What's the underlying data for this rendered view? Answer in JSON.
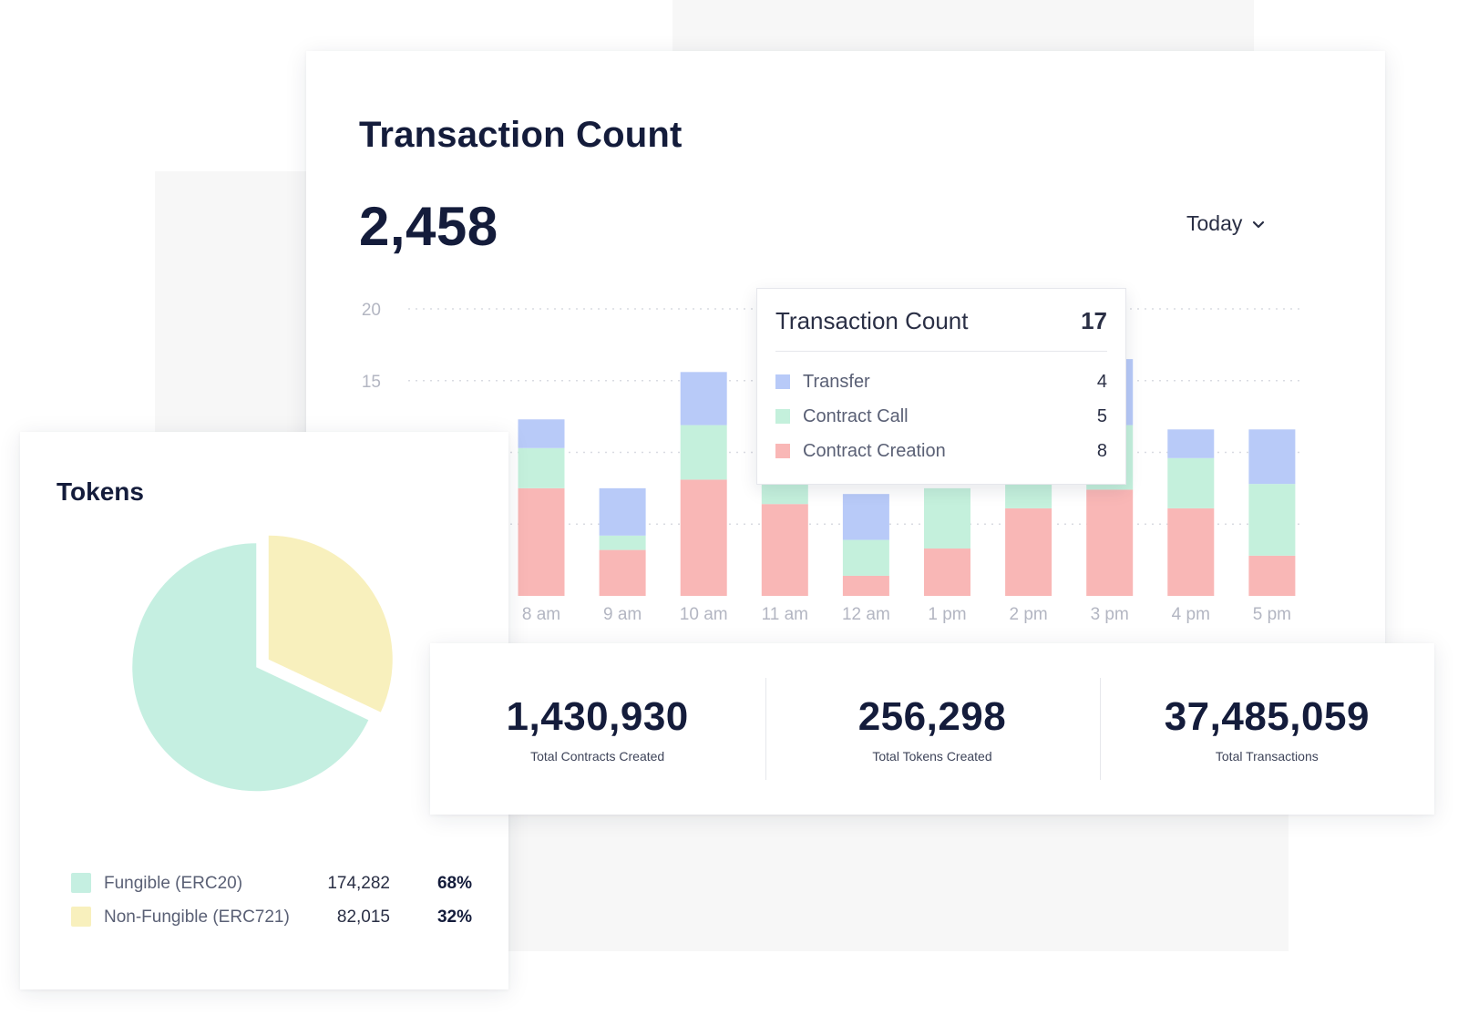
{
  "transaction_card": {
    "title": "Transaction Count",
    "total": "2,458",
    "range_label": "Today"
  },
  "colors": {
    "transfer": "#b8caf8",
    "contract_call": "#c4f0dc",
    "contract_creation": "#f9b7b6",
    "fungible": "#c5efe1",
    "non_fungible": "#f8f0bd",
    "text_dark": "#141c3b"
  },
  "tooltip": {
    "title": "Transaction Count",
    "total": "17",
    "rows": [
      {
        "label": "Transfer",
        "value": "4",
        "color": "#b8caf8"
      },
      {
        "label": "Contract Call",
        "value": "5",
        "color": "#c4f0dc"
      },
      {
        "label": "Contract Creation",
        "value": "8",
        "color": "#f9b7b6"
      }
    ]
  },
  "chart_data": [
    {
      "type": "bar",
      "stacked": true,
      "title": "Transaction Count",
      "categories": [
        "8 am",
        "9 am",
        "10 am",
        "11 am",
        "12 am",
        "1 pm",
        "2 pm",
        "3 pm",
        "4 pm",
        "5 pm"
      ],
      "series": [
        {
          "name": "Contract Creation",
          "values": [
            7.5,
            3.2,
            8.1,
            6.4,
            1.4,
            3.3,
            6.1,
            7.4,
            6.1,
            2.8
          ]
        },
        {
          "name": "Contract Call",
          "values": [
            2.8,
            1.0,
            3.8,
            4.2,
            2.5,
            4.2,
            4.5,
            4.5,
            3.5,
            5.0
          ]
        },
        {
          "name": "Transfer",
          "values": [
            2.0,
            3.3,
            3.7,
            0.0,
            3.2,
            0.0,
            0.0,
            4.6,
            2.0,
            3.8
          ]
        }
      ],
      "ylim": [
        0,
        20
      ],
      "yticks": [
        15,
        20
      ],
      "grid": true
    },
    {
      "type": "pie",
      "title": "Tokens",
      "labels": [
        "Fungible (ERC20)",
        "Non-Fungible (ERC721)"
      ],
      "values": [
        174282,
        82015
      ],
      "percents": [
        68,
        32
      ]
    }
  ],
  "tokens_card": {
    "title": "Tokens",
    "legend": [
      {
        "label": "Fungible (ERC20)",
        "count": "174,282",
        "percent": "68%",
        "color": "#c5efe1"
      },
      {
        "label": "Non-Fungible (ERC721)",
        "count": "82,015",
        "percent": "32%",
        "color": "#f8f0bd"
      }
    ]
  },
  "stats": [
    {
      "value": "1,430,930",
      "label": "Total Contracts Created"
    },
    {
      "value": "256,298",
      "label": "Total Tokens Created"
    },
    {
      "value": "37,485,059",
      "label": "Total Transactions"
    }
  ]
}
